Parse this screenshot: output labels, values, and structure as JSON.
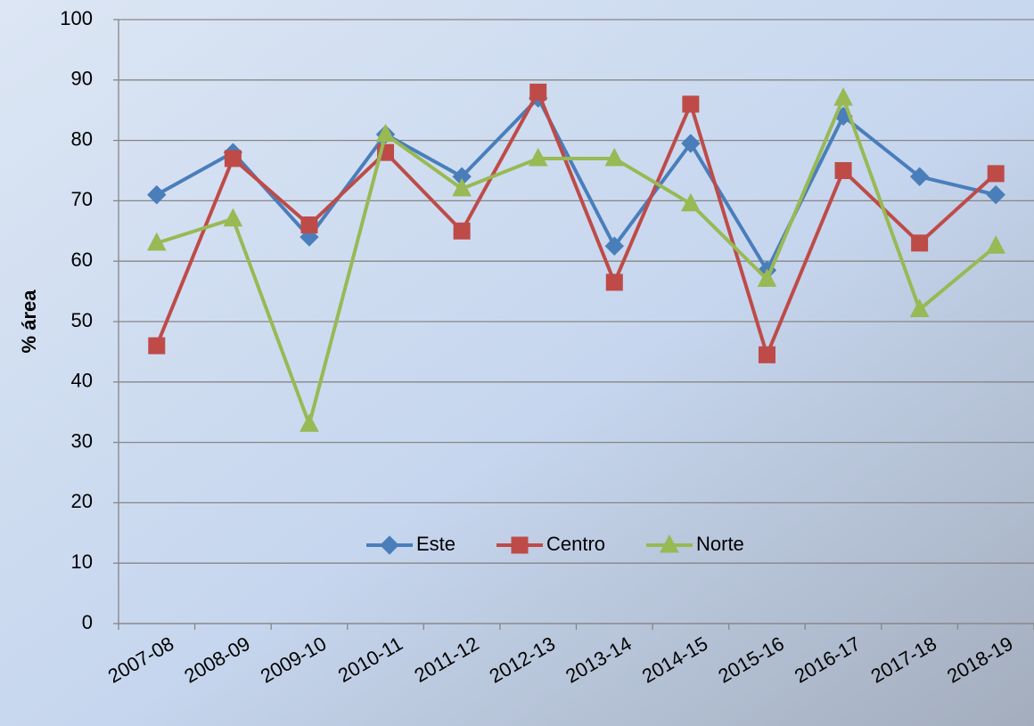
{
  "chart_data": {
    "type": "line",
    "y_label": "% área",
    "categories": [
      "2007-08",
      "2008-09",
      "2009-10",
      "2010-11",
      "2011-12",
      "2012-13",
      "2013-14",
      "2014-15",
      "2015-16",
      "2016-17",
      "2017-18",
      "2018-19"
    ],
    "series": [
      {
        "name": "Este",
        "color": "#4a7ebb",
        "marker": "diamond",
        "values": [
          71,
          78,
          64,
          81,
          74,
          87,
          62.5,
          79.5,
          58.5,
          84,
          74,
          71
        ]
      },
      {
        "name": "Centro",
        "color": "#be4b48",
        "marker": "square",
        "values": [
          46,
          77,
          66,
          78,
          65,
          88,
          56.5,
          86,
          44.5,
          75,
          63,
          74.5
        ]
      },
      {
        "name": "Norte",
        "color": "#98b954",
        "marker": "triangle",
        "values": [
          63,
          67,
          33,
          81,
          72,
          77,
          77,
          69.5,
          57,
          87,
          52,
          62.5
        ]
      }
    ],
    "ylim": [
      0,
      100
    ],
    "yticks": [
      0,
      10,
      20,
      30,
      40,
      50,
      60,
      70,
      80,
      90,
      100
    ],
    "grid": true,
    "legend": "bottom"
  }
}
